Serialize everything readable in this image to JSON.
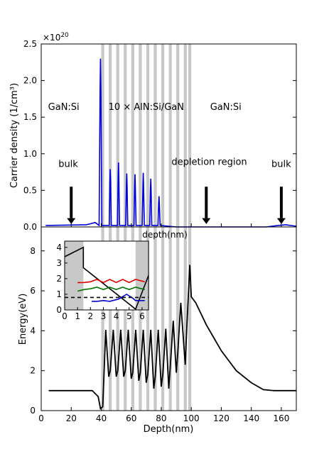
{
  "chart_data": [
    {
      "panel": "top",
      "type": "line",
      "exponent_label": "×10",
      "exponent_power": "20",
      "ylabel": "Carrier density (1/cm³)",
      "xlabel": "depth(nm)",
      "xlim": [
        0,
        170
      ],
      "ylim": [
        0,
        2.5
      ],
      "yticks": [
        "0.0",
        "0.5",
        "1.0",
        "1.5",
        "2.0",
        "2.5"
      ],
      "grid": false,
      "series_color": "#0000dd",
      "shaded_bands_nm": [
        [
          40,
          42
        ],
        [
          45,
          47
        ],
        [
          50,
          52
        ],
        [
          55,
          57
        ],
        [
          60,
          62
        ],
        [
          65,
          67
        ],
        [
          70,
          72
        ],
        [
          75,
          77
        ],
        [
          80,
          82
        ],
        [
          85,
          87
        ],
        [
          90,
          92
        ],
        [
          95,
          97
        ],
        [
          98,
          100
        ]
      ],
      "peaks": [
        {
          "x": 39.5,
          "y": 2.3
        },
        {
          "x": 46,
          "y": 0.79
        },
        {
          "x": 51.5,
          "y": 0.88
        },
        {
          "x": 57,
          "y": 0.73
        },
        {
          "x": 62.5,
          "y": 0.72
        },
        {
          "x": 68,
          "y": 0.74
        },
        {
          "x": 73,
          "y": 0.66
        },
        {
          "x": 78.5,
          "y": 0.42
        }
      ],
      "annotations": [
        {
          "text": "GaN:Si",
          "x": 15,
          "y": 1.6
        },
        {
          "text": "10 × AlN:Si/GaN",
          "x": 70,
          "y": 1.6
        },
        {
          "text": "GaN:Si",
          "x": 123,
          "y": 1.6
        },
        {
          "text": "bulk",
          "x": 18,
          "y": 0.82
        },
        {
          "text": "depletion region",
          "x": 112,
          "y": 0.85
        },
        {
          "text": "bulk",
          "x": 160,
          "y": 0.82
        }
      ],
      "arrows_x_nm": [
        20,
        110,
        160
      ]
    },
    {
      "panel": "bottom",
      "type": "line",
      "xlabel": "Depth(nm)",
      "ylabel": "Energy(eV)",
      "xlim": [
        0,
        170
      ],
      "ylim": [
        0,
        9.2
      ],
      "xticks": [
        "0",
        "20",
        "40",
        "60",
        "80",
        "100",
        "120",
        "140",
        "160"
      ],
      "yticks": [
        "0",
        "2",
        "4",
        "6",
        "8"
      ],
      "series_color": "#000000",
      "profile_points": [
        [
          5,
          1.0
        ],
        [
          34,
          1.0
        ],
        [
          38,
          0.7
        ],
        [
          39.5,
          0.1
        ],
        [
          41,
          0.2
        ],
        [
          43,
          4.05
        ],
        [
          45,
          1.7
        ],
        [
          46,
          2.0
        ],
        [
          48,
          4.05
        ],
        [
          50,
          1.7
        ],
        [
          51,
          2.0
        ],
        [
          53,
          4.05
        ],
        [
          55,
          1.7
        ],
        [
          56,
          2.0
        ],
        [
          58,
          4.05
        ],
        [
          60,
          1.6
        ],
        [
          61,
          1.9
        ],
        [
          63,
          4.05
        ],
        [
          65,
          1.5
        ],
        [
          66,
          1.9
        ],
        [
          68,
          4.05
        ],
        [
          70,
          1.4
        ],
        [
          71,
          1.8
        ],
        [
          73,
          4.05
        ],
        [
          75,
          1.1
        ],
        [
          76,
          1.7
        ],
        [
          78,
          4.05
        ],
        [
          80,
          1.2
        ],
        [
          81,
          1.8
        ],
        [
          83,
          4.1
        ],
        [
          85,
          1.1
        ],
        [
          86,
          2.2
        ],
        [
          88,
          4.5
        ],
        [
          90,
          1.9
        ],
        [
          91,
          2.9
        ],
        [
          93,
          5.4
        ],
        [
          96,
          2.3
        ],
        [
          97,
          4.1
        ],
        [
          99,
          7.3
        ],
        [
          100,
          5.7
        ],
        [
          103,
          5.4
        ],
        [
          110,
          4.3
        ],
        [
          120,
          3.0
        ],
        [
          130,
          2.0
        ],
        [
          140,
          1.4
        ],
        [
          148,
          1.05
        ],
        [
          155,
          1.0
        ],
        [
          170,
          1.0
        ]
      ],
      "inset": {
        "xlabel": "depth(nm)",
        "xlim": [
          0,
          6.5
        ],
        "ylim": [
          0,
          4.4
        ],
        "xticks": [
          "0",
          "1",
          "2",
          "3",
          "4",
          "5",
          "6"
        ],
        "yticks": [
          "0",
          "1",
          "2",
          "3",
          "4"
        ],
        "shaded_ranges": [
          [
            0,
            1.45
          ],
          [
            5.5,
            6.5
          ]
        ],
        "series": [
          {
            "color": "#000000",
            "points": [
              [
                0,
                3.4
              ],
              [
                1.45,
                4.0
              ],
              [
                1.45,
                2.7
              ],
              [
                5.5,
                0.05
              ],
              [
                6.5,
                2.2
              ]
            ]
          },
          {
            "color": "#dd0000",
            "points": [
              [
                1,
                1.75
              ],
              [
                1.5,
                1.75
              ],
              [
                2,
                1.8
              ],
              [
                2.5,
                1.95
              ],
              [
                3,
                1.75
              ],
              [
                3.5,
                1.95
              ],
              [
                4,
                1.75
              ],
              [
                4.5,
                1.95
              ],
              [
                5,
                1.75
              ],
              [
                5.5,
                1.95
              ],
              [
                6.2,
                1.8
              ]
            ]
          },
          {
            "color": "#007700",
            "points": [
              [
                1,
                1.2
              ],
              [
                1.5,
                1.3
              ],
              [
                2,
                1.35
              ],
              [
                2.5,
                1.45
              ],
              [
                3,
                1.3
              ],
              [
                3.5,
                1.45
              ],
              [
                4,
                1.3
              ],
              [
                4.5,
                1.45
              ],
              [
                5,
                1.3
              ],
              [
                5.5,
                1.45
              ],
              [
                6.2,
                1.3
              ]
            ]
          },
          {
            "color": "#0000cc",
            "points": [
              [
                2.1,
                0.55
              ],
              [
                2.5,
                0.55
              ],
              [
                3,
                0.6
              ],
              [
                3.5,
                0.55
              ],
              [
                4.2,
                0.7
              ],
              [
                4.8,
                1.0
              ],
              [
                5.2,
                0.8
              ],
              [
                5.5,
                0.6
              ],
              [
                6.2,
                0.6
              ]
            ]
          },
          {
            "color": "#000000",
            "dashed": true,
            "points": [
              [
                0,
                0.8
              ],
              [
                6.5,
                0.8
              ]
            ]
          }
        ]
      }
    }
  ]
}
